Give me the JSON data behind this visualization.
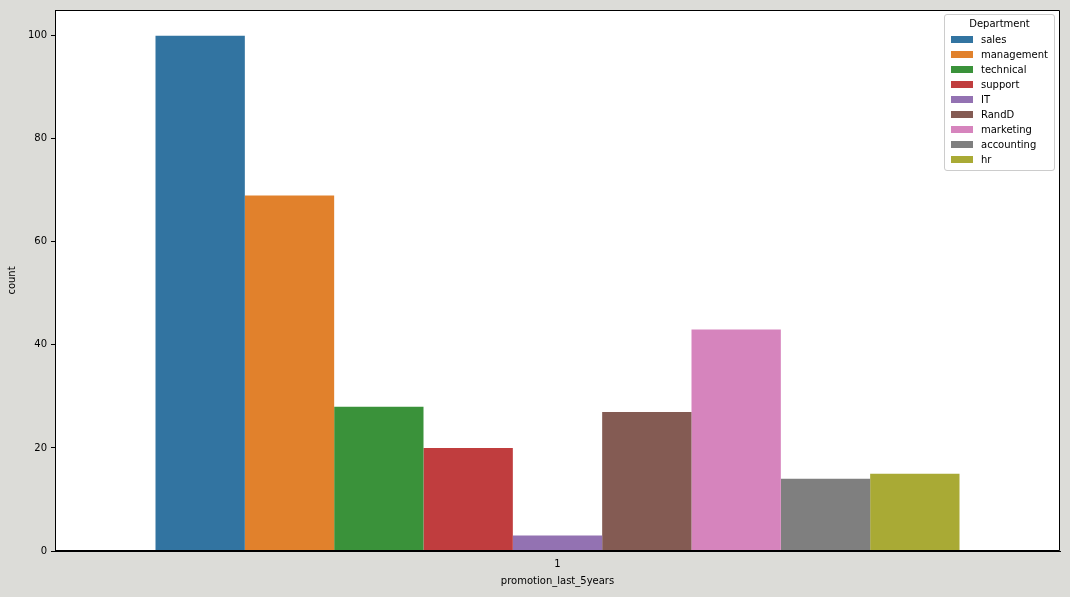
{
  "chart_data": {
    "type": "bar",
    "xlabel": "promotion_last_5years",
    "ylabel": "count",
    "legend_title": "Department",
    "legend": "top right",
    "categories": [
      "1"
    ],
    "ylim": [
      0,
      105
    ],
    "yticks": [
      0,
      20,
      40,
      60,
      80,
      100
    ],
    "series": [
      {
        "name": "sales",
        "color": "#3274a1",
        "values": [
          100
        ]
      },
      {
        "name": "management",
        "color": "#e1812c",
        "values": [
          69
        ]
      },
      {
        "name": "technical",
        "color": "#3a923a",
        "values": [
          28
        ]
      },
      {
        "name": "support",
        "color": "#c03d3e",
        "values": [
          20
        ]
      },
      {
        "name": "IT",
        "color": "#9372b2",
        "values": [
          3
        ]
      },
      {
        "name": "RandD",
        "color": "#845b53",
        "values": [
          27
        ]
      },
      {
        "name": "marketing",
        "color": "#d684bd",
        "values": [
          43
        ]
      },
      {
        "name": "accounting",
        "color": "#7f7f7f",
        "values": [
          14
        ]
      },
      {
        "name": "hr",
        "color": "#a9aa35",
        "values": [
          15
        ]
      }
    ]
  }
}
